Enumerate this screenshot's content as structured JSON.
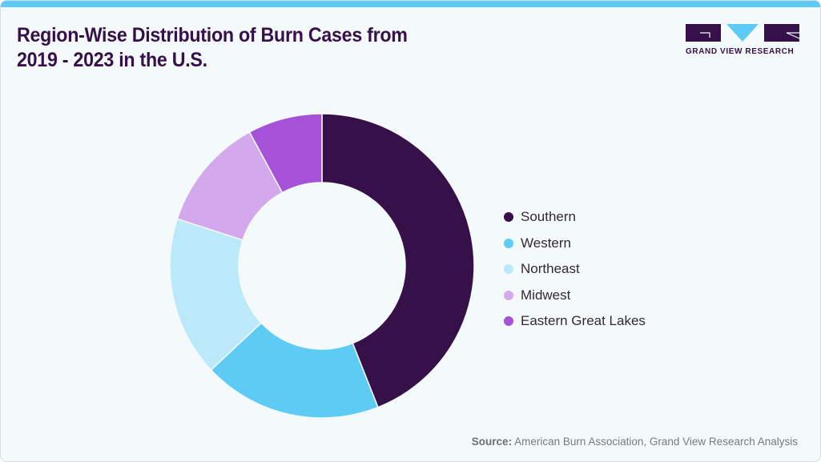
{
  "header": {
    "title_line1": "Region-Wise Distribution of Burn Cases from",
    "title_line2": "2019 - 2023 in the U.S."
  },
  "logo": {
    "text": "GRAND VIEW RESEARCH",
    "colors": {
      "dark": "#361049",
      "accent": "#5ecbf5"
    }
  },
  "chart_data": {
    "type": "pie",
    "subtype": "donut",
    "title": "Region-Wise Distribution of Burn Cases from 2019 - 2023 in the U.S.",
    "categories": [
      "Southern",
      "Western",
      "Northeast",
      "Midwest",
      "Eastern Great Lakes"
    ],
    "values": [
      44.0,
      19.0,
      17.0,
      12.1,
      7.9
    ],
    "unit": "% (estimated from slice angles)",
    "colors": [
      "#361049",
      "#5ecbf5",
      "#bce9f9",
      "#d4a8ec",
      "#a552d8"
    ],
    "legend_position": "right",
    "start_angle": "12 o'clock, clockwise"
  },
  "legend": {
    "items": [
      {
        "label": "Southern",
        "color": "#361049"
      },
      {
        "label": "Western",
        "color": "#5ecbf5"
      },
      {
        "label": "Northeast",
        "color": "#bce9f9"
      },
      {
        "label": "Midwest",
        "color": "#d4a8ec"
      },
      {
        "label": "Eastern Great Lakes",
        "color": "#a552d8"
      }
    ]
  },
  "footer": {
    "source_label": "Source:",
    "source_text": " American Burn Association, Grand View Research Analysis"
  }
}
